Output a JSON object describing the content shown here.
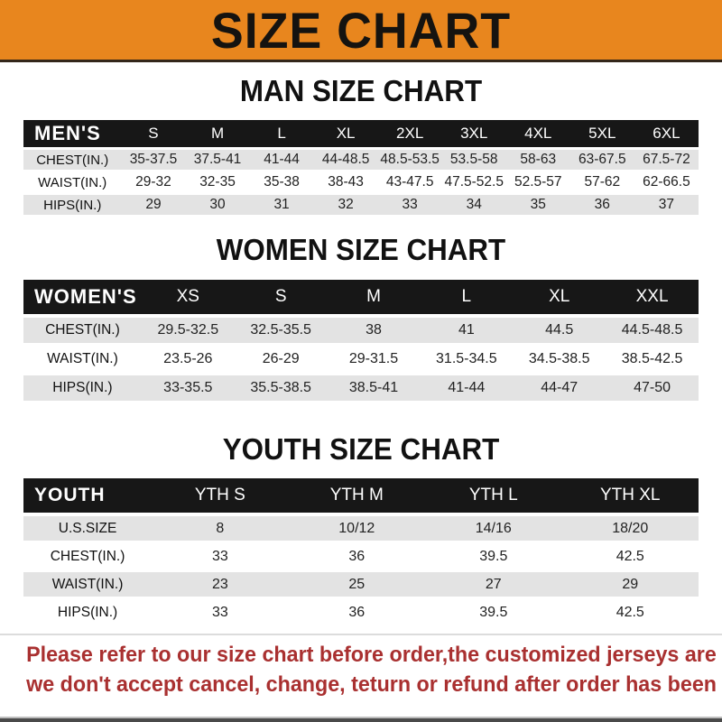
{
  "banner": {
    "title": "SIZE CHART"
  },
  "sections": {
    "men": {
      "heading": "MAN SIZE CHART"
    },
    "women": {
      "heading": "WOMEN SIZE CHART"
    },
    "youth": {
      "heading": "YOUTH SIZE CHART"
    }
  },
  "tables": {
    "men": {
      "label": "MEN'S",
      "columns": [
        "S",
        "M",
        "L",
        "XL",
        "2XL",
        "3XL",
        "4XL",
        "5XL",
        "6XL"
      ],
      "rows": [
        {
          "label": "CHEST(IN.)",
          "values": [
            "35-37.5",
            "37.5-41",
            "41-44",
            "44-48.5",
            "48.5-53.5",
            "53.5-58",
            "58-63",
            "63-67.5",
            "67.5-72"
          ]
        },
        {
          "label": "WAIST(IN.)",
          "values": [
            "29-32",
            "32-35",
            "35-38",
            "38-43",
            "43-47.5",
            "47.5-52.5",
            "52.5-57",
            "57-62",
            "62-66.5"
          ]
        },
        {
          "label": "HIPS(IN.)",
          "values": [
            "29",
            "30",
            "31",
            "32",
            "33",
            "34",
            "35",
            "36",
            "37"
          ]
        }
      ]
    },
    "women": {
      "label": "WOMEN'S",
      "columns": [
        "XS",
        "S",
        "M",
        "L",
        "XL",
        "XXL"
      ],
      "rows": [
        {
          "label": "CHEST(IN.)",
          "values": [
            "29.5-32.5",
            "32.5-35.5",
            "38",
            "41",
            "44.5",
            "44.5-48.5"
          ]
        },
        {
          "label": "WAIST(IN.)",
          "values": [
            "23.5-26",
            "26-29",
            "29-31.5",
            "31.5-34.5",
            "34.5-38.5",
            "38.5-42.5"
          ]
        },
        {
          "label": "HIPS(IN.)",
          "values": [
            "33-35.5",
            "35.5-38.5",
            "38.5-41",
            "41-44",
            "44-47",
            "47-50"
          ]
        }
      ]
    },
    "youth": {
      "label": "YOUTH",
      "columns": [
        "YTH S",
        "YTH M",
        "YTH L",
        "YTH XL"
      ],
      "rows": [
        {
          "label": "U.S.SIZE",
          "values": [
            "8",
            "10/12",
            "14/16",
            "18/20"
          ]
        },
        {
          "label": "CHEST(IN.)",
          "values": [
            "33",
            "36",
            "39.5",
            "42.5"
          ]
        },
        {
          "label": "WAIST(IN.)",
          "values": [
            "23",
            "25",
            "27",
            "29"
          ]
        },
        {
          "label": "HIPS(IN.)",
          "values": [
            "33",
            "36",
            "39.5",
            "42.5"
          ]
        }
      ]
    }
  },
  "footer": {
    "line1": "Please refer to our size chart before order,the customized jerseys are special products,",
    "line2": "we don't accept cancel, change, teturn or refund after order has been placed!"
  },
  "colors": {
    "banner_orange": "#E8861E",
    "table_header_black": "#171717",
    "row_gray": "#E3E3E3",
    "footer_red": "#A93030"
  }
}
